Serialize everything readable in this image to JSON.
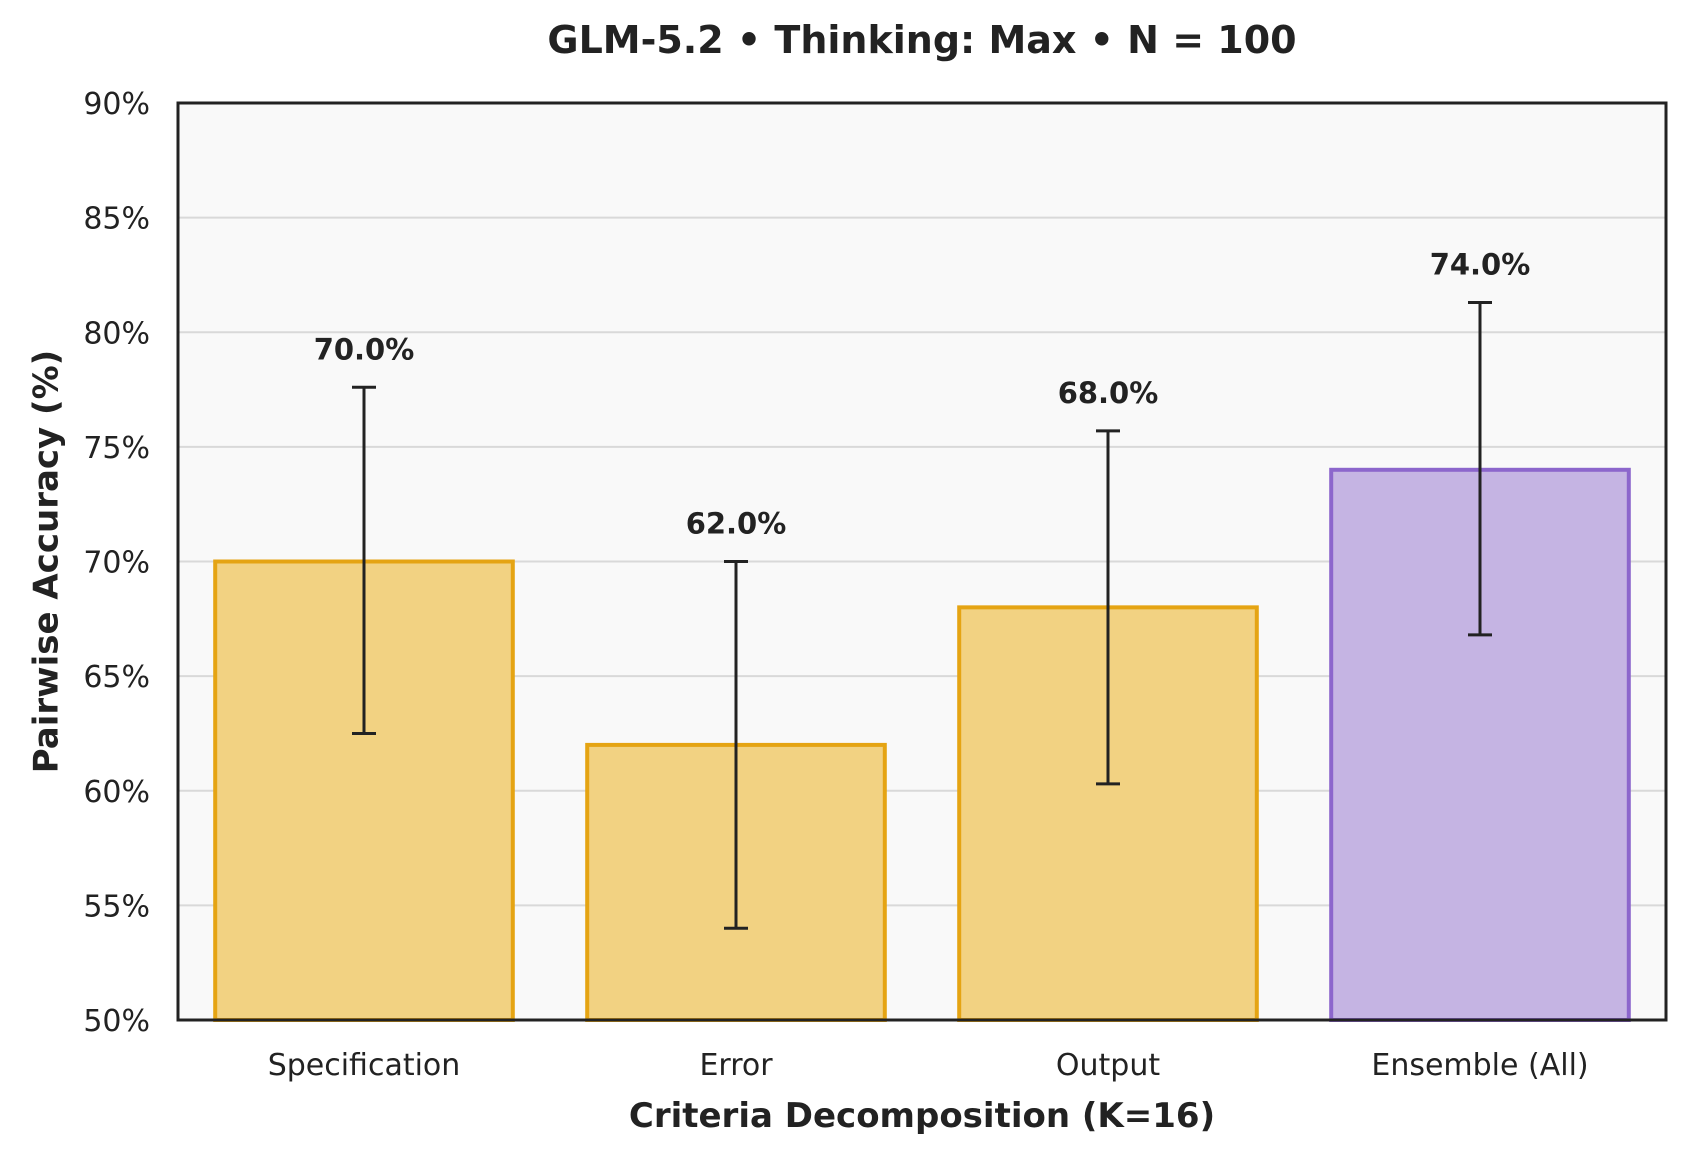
{
  "chart_data": {
    "type": "bar",
    "title": "GLM-5.2 • Thinking: Max • N = 100",
    "xlabel": "Criteria Decomposition (K=16)",
    "ylabel": "Pairwise Accuracy (%)",
    "categories": [
      "Specification",
      "Error",
      "Output",
      "Ensemble (All)"
    ],
    "values": [
      70.0,
      62.0,
      68.0,
      74.0
    ],
    "value_labels": [
      "70.0%",
      "62.0%",
      "68.0%",
      "74.0%"
    ],
    "error_low": [
      62.5,
      54.0,
      60.3,
      66.8
    ],
    "error_high": [
      77.6,
      70.0,
      75.7,
      81.3
    ],
    "ylim": [
      50,
      90
    ],
    "yticks": [
      50,
      55,
      60,
      65,
      70,
      75,
      80,
      85,
      90
    ],
    "ytick_labels": [
      "50%",
      "55%",
      "60%",
      "65%",
      "70%",
      "75%",
      "80%",
      "85%",
      "90%"
    ],
    "grid": "horizontal",
    "colors": {
      "bar_fill": [
        "#f2d282",
        "#f2d282",
        "#f2d282",
        "#c5b4e3"
      ],
      "bar_edge": [
        "#e5a413",
        "#e5a413",
        "#e5a413",
        "#8c66cc"
      ],
      "plot_background": "#f9f9f9",
      "grid": "#d9d9d9",
      "error_bar": "#222222"
    }
  }
}
